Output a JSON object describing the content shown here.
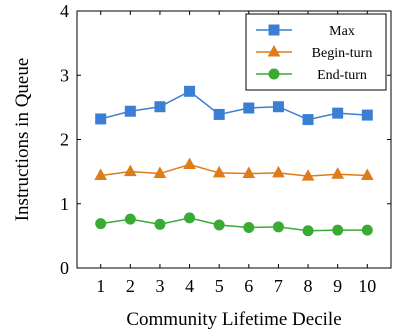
{
  "chart_data": {
    "type": "line",
    "xlabel": "Community Lifetime Decile",
    "ylabel": "Instructions in Queue",
    "x": [
      1,
      2,
      3,
      4,
      5,
      6,
      7,
      8,
      9,
      10
    ],
    "xlim": [
      0.2,
      10.8
    ],
    "ylim": [
      0,
      4
    ],
    "xticks": [
      1,
      2,
      3,
      4,
      5,
      6,
      7,
      8,
      9,
      10
    ],
    "yticks": [
      0,
      1,
      2,
      3,
      4
    ],
    "grid": false,
    "legend_position": "top-right",
    "series": [
      {
        "name": "Max",
        "color": "#3b7fd4",
        "marker": "square",
        "values": [
          2.32,
          2.44,
          2.51,
          2.75,
          2.39,
          2.49,
          2.51,
          2.31,
          2.41,
          2.38
        ]
      },
      {
        "name": "Begin-turn",
        "color": "#e07b1a",
        "marker": "triangle",
        "values": [
          1.44,
          1.5,
          1.47,
          1.61,
          1.48,
          1.47,
          1.48,
          1.43,
          1.46,
          1.44
        ]
      },
      {
        "name": "End-turn",
        "color": "#3aaa35",
        "marker": "circle",
        "values": [
          0.69,
          0.76,
          0.68,
          0.78,
          0.67,
          0.63,
          0.64,
          0.58,
          0.59,
          0.59
        ]
      }
    ]
  }
}
